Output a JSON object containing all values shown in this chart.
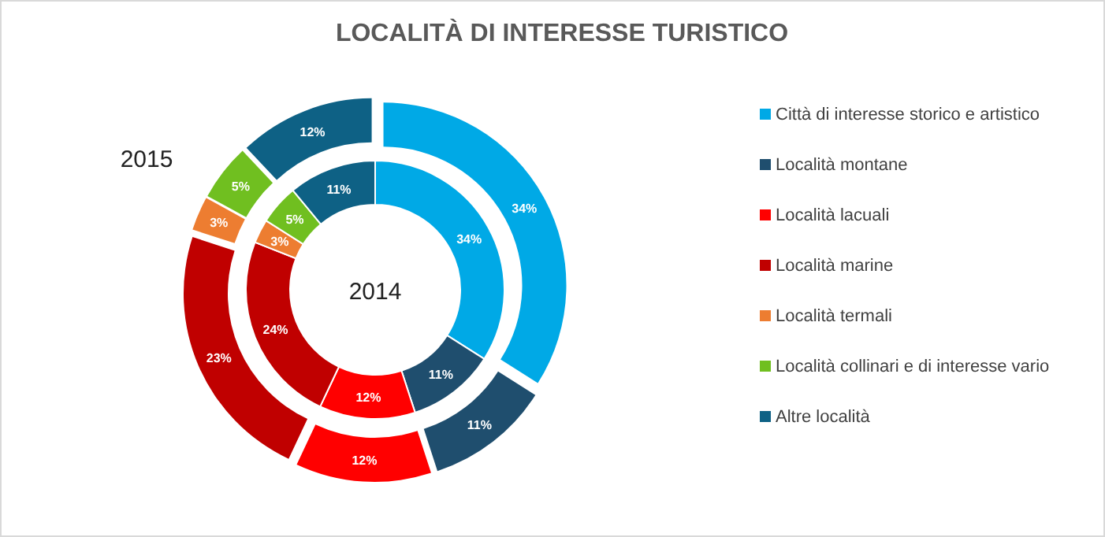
{
  "chart_data": {
    "type": "donut",
    "title": "LOCALITÀ DI INTERESSE TURISTICO",
    "categories": [
      "Città di interesse storico e artistico",
      "Località montane",
      "Località lacuali",
      "Località marine",
      "Località termali",
      "Località collinari e di interesse vario",
      "Altre località"
    ],
    "colors": [
      "#00a9e6",
      "#1f4e6e",
      "#ff0000",
      "#c00000",
      "#ed7d31",
      "#70bf20",
      "#0e6185"
    ],
    "series": [
      {
        "name": "2014",
        "values": [
          34,
          11,
          12,
          24,
          3,
          5,
          11
        ],
        "value_labels": [
          "34%",
          "11%",
          "12%",
          "24%",
          "3%",
          "5%",
          "11%"
        ]
      },
      {
        "name": "2015",
        "values": [
          34,
          11,
          12,
          23,
          3,
          5,
          12
        ],
        "value_labels": [
          "34%",
          "11%",
          "12%",
          "23%",
          "3%",
          "5%",
          "12%"
        ]
      }
    ],
    "legend": "right"
  }
}
